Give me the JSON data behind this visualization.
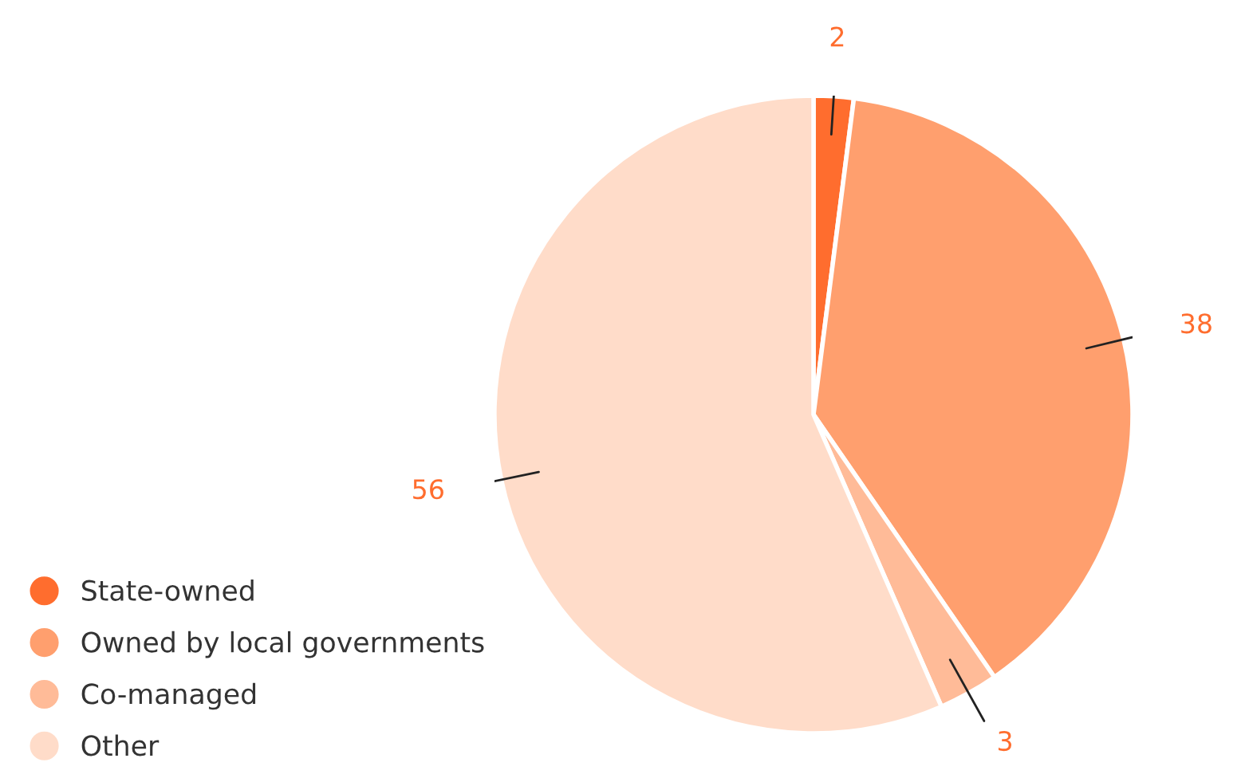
{
  "chart_data": {
    "type": "pie",
    "categories": [
      "State-owned",
      "Owned by local governments",
      "Co-managed",
      "Other"
    ],
    "values": [
      2,
      38,
      3,
      56
    ],
    "colors": [
      "#ff6d2e",
      "#ff9f6e",
      "#ffbb98",
      "#ffdcc9"
    ],
    "data_labels": true,
    "legend": "bottom left"
  }
}
